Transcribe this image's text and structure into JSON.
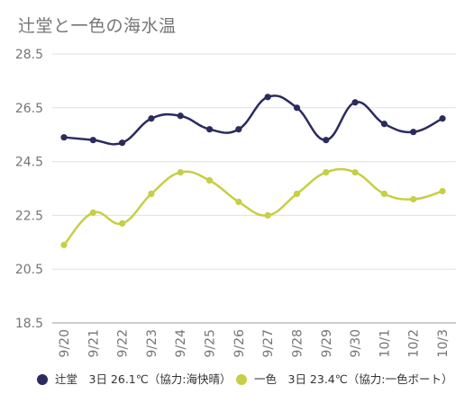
{
  "chart_data": {
    "type": "line",
    "title": "辻堂と一色の海水温",
    "categories": [
      "9/20",
      "9/21",
      "9/22",
      "9/23",
      "9/24",
      "9/25",
      "9/26",
      "9/27",
      "9/28",
      "9/29",
      "9/30",
      "10/1",
      "10/2",
      "10/3"
    ],
    "ylim": [
      18.5,
      28.5
    ],
    "yticks": [
      "18.5",
      "20.5",
      "22.5",
      "24.5",
      "26.5",
      "28.5"
    ],
    "grid": true,
    "legend_position": "bottom",
    "series": [
      {
        "name": "辻堂　3日 26.1℃（協力:海快晴）",
        "color": "#2b2b5e",
        "values": [
          25.4,
          25.3,
          25.2,
          26.1,
          26.2,
          25.7,
          25.7,
          26.9,
          26.5,
          25.3,
          26.7,
          25.9,
          25.6,
          26.1
        ]
      },
      {
        "name": "一色　3日 23.4℃（協力:一色ボート）",
        "color": "#c6cf45",
        "values": [
          21.4,
          22.6,
          22.2,
          23.3,
          24.1,
          23.8,
          23.0,
          22.5,
          23.3,
          24.1,
          24.1,
          23.3,
          23.1,
          23.4
        ]
      }
    ]
  }
}
